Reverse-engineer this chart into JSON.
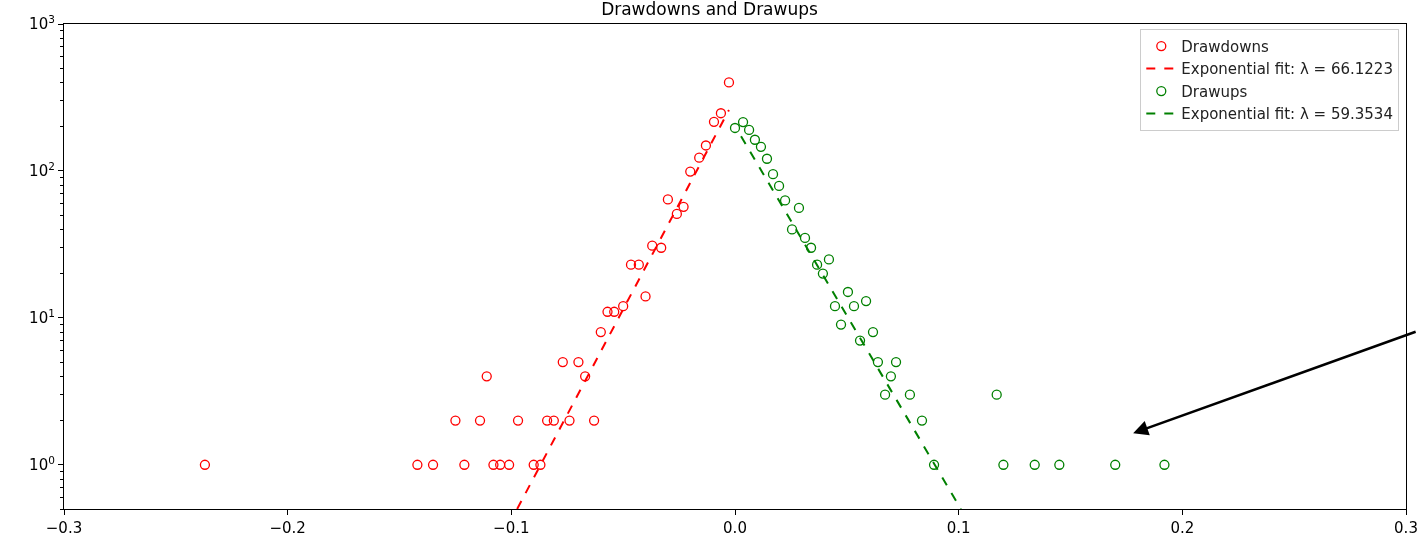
{
  "chart_data": {
    "type": "scatter",
    "title": "Drawdowns and Drawups",
    "log": "y",
    "grid": false,
    "legend": "top right",
    "marker": "circle",
    "xlim": [
      -0.3,
      0.3
    ],
    "xticks": [
      {
        "value": -0.3,
        "label": "−0.3"
      },
      {
        "value": -0.2,
        "label": "−0.2"
      },
      {
        "value": -0.1,
        "label": "−0.1"
      },
      {
        "value": 0,
        "label": "0.0"
      },
      {
        "value": 0.1,
        "label": "0.1"
      },
      {
        "value": 0.2,
        "label": "0.2"
      },
      {
        "value": 0.3,
        "label": "0.3"
      }
    ],
    "ylim": [
      0.5,
      1000
    ],
    "yticks": [
      {
        "value": 1,
        "label": "10$^{0}$"
      },
      {
        "value": 10,
        "label": "10$^{1}$"
      },
      {
        "value": 100,
        "label": "10$^{2}$"
      },
      {
        "value": 1000,
        "label": "10$^{3}$"
      }
    ],
    "series": [
      {
        "name": "Drawdowns",
        "color": "#ff0000",
        "x": [
          -0.237,
          -0.142,
          -0.135,
          -0.125,
          -0.121,
          -0.114,
          -0.111,
          -0.108,
          -0.105,
          -0.101,
          -0.097,
          -0.09,
          -0.087,
          -0.084,
          -0.081,
          -0.077,
          -0.074,
          -0.07,
          -0.067,
          -0.063,
          -0.06,
          -0.057,
          -0.054,
          -0.05,
          -0.0465,
          -0.043,
          -0.04,
          -0.037,
          -0.033,
          -0.03,
          -0.026,
          -0.023,
          -0.02,
          -0.016,
          -0.013,
          -0.0094,
          -0.0063,
          -0.0027
        ],
        "values": [
          1,
          1,
          1,
          2,
          1,
          2,
          4,
          1,
          1,
          1,
          2,
          1,
          1,
          2,
          2,
          5,
          2,
          5,
          4,
          2,
          8,
          11,
          11,
          12,
          23,
          23,
          14,
          31,
          30,
          64,
          51,
          57,
          99,
          123,
          149,
          216,
          247,
          400
        ]
      },
      {
        "name": "Exponential fit: λ = 66.1223",
        "type": "line",
        "line_style": "dashed",
        "marker": "none",
        "color": "#ff0000",
        "x": [
          -0.0974,
          -0.0027
        ],
        "values": [
          0.5,
          260
        ]
      },
      {
        "name": "Drawups",
        "color": "#008000",
        "x": [
          0,
          0.0036,
          0.0063,
          0.0089,
          0.0116,
          0.0143,
          0.017,
          0.0197,
          0.0224,
          0.0255,
          0.0286,
          0.0313,
          0.034,
          0.0367,
          0.0393,
          0.042,
          0.0447,
          0.0474,
          0.0505,
          0.0532,
          0.0559,
          0.0586,
          0.0617,
          0.0639,
          0.0671,
          0.0697,
          0.072,
          0.0782,
          0.0836,
          0.089,
          0.117,
          0.12,
          0.134,
          0.145,
          0.17,
          0.192
        ],
        "values": [
          196,
          215,
          190,
          163,
          146,
          121,
          95,
          79,
          63,
          40,
          56,
          35,
          30,
          23,
          20,
          25,
          12,
          9,
          15,
          12,
          7,
          13,
          8,
          5,
          3,
          4,
          5,
          3,
          2,
          1,
          3,
          1,
          1,
          1,
          1,
          1
        ]
      },
      {
        "name": "Exponential fit: λ = 59.3534",
        "type": "line",
        "line_style": "dashed",
        "marker": "none",
        "color": "#008000",
        "x": [
          0.0027,
          0.101
        ],
        "values": [
          172,
          0.5
        ]
      }
    ]
  }
}
